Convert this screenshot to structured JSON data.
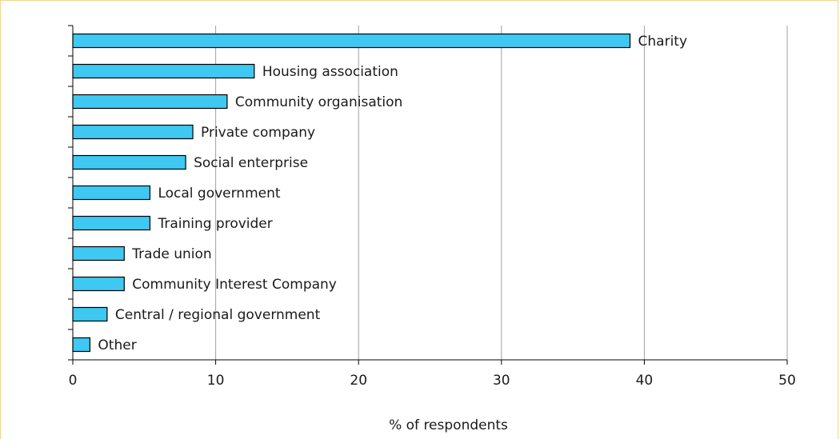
{
  "chart_data": {
    "type": "bar",
    "orientation": "horizontal",
    "title": "",
    "xlabel": "% of respondents",
    "ylabel": "",
    "xlim": [
      0,
      50
    ],
    "xticks": [
      0,
      10,
      20,
      30,
      40,
      50
    ],
    "grid": "vertical",
    "categories": [
      "Charity",
      "Housing association",
      "Community organisation",
      "Private company",
      "Social enterprise",
      "Local government",
      "Training provider",
      "Trade union",
      "Community Interest Company",
      "Central / regional government",
      "Other"
    ],
    "values": [
      39.0,
      12.7,
      10.8,
      8.4,
      7.9,
      5.4,
      5.4,
      3.6,
      3.6,
      2.4,
      1.2
    ],
    "colors": {
      "bar": "#3ec8f2",
      "bar_stroke": "#000000",
      "grid": "#a0a0a0",
      "axis": "#000000"
    }
  }
}
